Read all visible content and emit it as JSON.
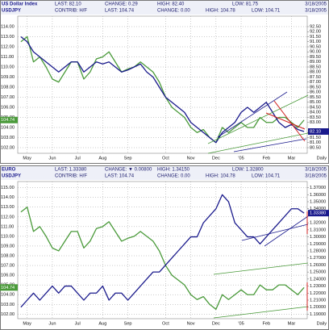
{
  "chart_data": [
    {
      "type": "line",
      "header": {
        "row1": [
          "US Dollar Index",
          "LAST: 82.10",
          "CHANGE: 0.29",
          "HIGH: 82.40",
          "LOW: 81.75"
        ],
        "date1": "3/18/2005",
        "row2": [
          "USDJPY",
          "CONTRIB: H/F",
          "LAST: 104.74",
          "CHANGE: 0.00",
          "HIGH: 104.78",
          "LOW: 104.71"
        ],
        "date2": "3/18/2005"
      },
      "badge_left": "104.74",
      "badge_right": "82.10",
      "periodicity": "Daily",
      "categories": [
        null,
        "May",
        null,
        null,
        null,
        "Jun",
        null,
        null,
        null,
        "Jul",
        null,
        null,
        null,
        "Aug",
        null,
        null,
        null,
        "Sep",
        null,
        null,
        null,
        null,
        null,
        "Oct",
        null,
        null,
        null,
        "Nov",
        null,
        null,
        null,
        "Dec",
        null,
        null,
        null,
        "'05",
        null,
        null,
        null,
        "Feb",
        null,
        null,
        null,
        "Mar",
        null,
        null
      ],
      "ylim": [
        101.44,
        115.04
      ],
      "y2lim": [
        79.94,
        93.54
      ],
      "yticks": [
        {
          "value": 114,
          "label": "114.00"
        },
        {
          "value": 113,
          "label": "113.00"
        },
        {
          "value": 112,
          "label": "112.00"
        },
        {
          "value": 111,
          "label": "111.00"
        },
        {
          "value": 110,
          "label": "110.00"
        },
        {
          "value": 109,
          "label": "109.00"
        },
        {
          "value": 108,
          "label": "108.00"
        },
        {
          "value": 107,
          "label": "107.00"
        },
        {
          "value": 106,
          "label": "106.00"
        },
        {
          "value": 105,
          "label": "105.00"
        },
        {
          "value": 104,
          "label": "104.00"
        },
        {
          "value": 103,
          "label": "103.00"
        },
        {
          "value": 102,
          "label": "102.00"
        }
      ],
      "y2ticks": [
        {
          "value": 92.5,
          "label": "92.50"
        },
        {
          "value": 92,
          "label": "92.00"
        },
        {
          "value": 91.5,
          "label": "91.50"
        },
        {
          "value": 91,
          "label": "91.00"
        },
        {
          "value": 90.5,
          "label": "90.50"
        },
        {
          "value": 90,
          "label": "90.00"
        },
        {
          "value": 89.5,
          "label": "89.50"
        },
        {
          "value": 89,
          "label": "89.00"
        },
        {
          "value": 88.5,
          "label": "88.50"
        },
        {
          "value": 88,
          "label": "88.00"
        },
        {
          "value": 87.5,
          "label": "87.50"
        },
        {
          "value": 87,
          "label": "87.00"
        },
        {
          "value": 86.5,
          "label": "86.50"
        },
        {
          "value": 86,
          "label": "86.00"
        },
        {
          "value": 85.5,
          "label": "85.50"
        },
        {
          "value": 85,
          "label": "85.00"
        },
        {
          "value": 84.5,
          "label": "84.50"
        },
        {
          "value": 84,
          "label": "84.00"
        },
        {
          "value": 83.5,
          "label": "83.50"
        },
        {
          "value": 83,
          "label": "83.00"
        },
        {
          "value": 82,
          "label": "82.00"
        },
        {
          "value": 81.5,
          "label": "81.50"
        },
        {
          "value": 81,
          "label": "81.00"
        },
        {
          "value": 80.5,
          "label": "80.50"
        }
      ],
      "grid": true,
      "series": [
        {
          "color": "#4a9a3a",
          "axis": "y",
          "values": [
            112.5,
            113,
            110.5,
            111,
            110,
            108.8,
            108.5,
            109.5,
            110.5,
            110.5,
            108.8,
            109.5,
            110.8,
            111,
            111.5,
            110.5,
            109.5,
            109.8,
            110,
            110.5,
            110,
            109.5,
            108.5,
            107,
            106,
            105.5,
            105,
            104,
            103.5,
            103.8,
            103,
            102.5,
            104,
            103.5,
            104,
            104.5,
            104,
            104,
            105,
            104.5,
            104.5,
            105,
            105,
            104.5,
            104,
            104.74
          ]
        },
        {
          "color": "#1a1a8c",
          "axis": "y2",
          "values": [
            91.5,
            91,
            90,
            89.5,
            89,
            88.5,
            88,
            88.5,
            89,
            89,
            88,
            88.5,
            89,
            88.8,
            89,
            88.5,
            88,
            88.2,
            88.5,
            88.8,
            88,
            87.5,
            86.5,
            85.5,
            85,
            84.5,
            84,
            83,
            82.5,
            82,
            81.5,
            81,
            82,
            82.5,
            83,
            84,
            84.5,
            84,
            84.5,
            85,
            84,
            83,
            82.5,
            82.8,
            82.3,
            82.1
          ]
        }
      ]
    },
    {
      "type": "line",
      "header": {
        "row1": [
          "EURO",
          "LAST: 1.33380",
          "CHANGE: ▼ 0.00800",
          "HIGH: 1.34150",
          "LOW: 1.32800"
        ],
        "date1": "3/18/2005",
        "row2": [
          "USDJPY",
          "CONTRIB: H/F",
          "LAST: 104.74",
          "CHANGE: 0.00",
          "HIGH: 104.78",
          "LOW: 104.71"
        ],
        "date2": "3/18/2005"
      },
      "badge_left": "104.74",
      "badge_right": "1.33380",
      "periodicity": "Daily",
      "categories": [
        null,
        "May",
        null,
        null,
        null,
        "Jun",
        null,
        null,
        null,
        "Jul",
        null,
        null,
        null,
        "Aug",
        null,
        null,
        null,
        "Sep",
        null,
        null,
        null,
        null,
        null,
        "Oct",
        null,
        null,
        null,
        "Nov",
        null,
        null,
        null,
        "Dec",
        null,
        null,
        null,
        "'05",
        null,
        null,
        null,
        "Feb",
        null,
        null,
        null,
        "Mar",
        null,
        null
      ],
      "ylim": [
        101.53,
        115.63
      ],
      "y2lim": [
        1.1836,
        1.3787
      ],
      "yticks": [
        {
          "value": 115,
          "label": "115.00"
        },
        {
          "value": 114,
          "label": "114.00"
        },
        {
          "value": 113,
          "label": "113.00"
        },
        {
          "value": 112,
          "label": "112.00"
        },
        {
          "value": 111,
          "label": "111.00"
        },
        {
          "value": 110,
          "label": "110.00"
        },
        {
          "value": 109,
          "label": "109.00"
        },
        {
          "value": 108,
          "label": "108.00"
        },
        {
          "value": 107,
          "label": "107.00"
        },
        {
          "value": 106,
          "label": "106.00"
        },
        {
          "value": 105,
          "label": "105.00"
        },
        {
          "value": 104,
          "label": "104.00"
        },
        {
          "value": 103,
          "label": "103.00"
        },
        {
          "value": 102,
          "label": "102.00"
        }
      ],
      "y2ticks": [
        {
          "value": 1.37,
          "label": "1.37000"
        },
        {
          "value": 1.36,
          "label": "1.36000"
        },
        {
          "value": 1.35,
          "label": "1.35000"
        },
        {
          "value": 1.34,
          "label": "1.34000"
        },
        {
          "value": 1.32,
          "label": "1.32000"
        },
        {
          "value": 1.31,
          "label": "1.31000"
        },
        {
          "value": 1.3,
          "label": "1.30000"
        },
        {
          "value": 1.29,
          "label": "1.29000"
        },
        {
          "value": 1.28,
          "label": "1.28000"
        },
        {
          "value": 1.27,
          "label": "1.27000"
        },
        {
          "value": 1.26,
          "label": "1.26000"
        },
        {
          "value": 1.25,
          "label": "1.25000"
        },
        {
          "value": 1.24,
          "label": "1.24000"
        },
        {
          "value": 1.23,
          "label": "1.23000"
        },
        {
          "value": 1.22,
          "label": "1.22000"
        },
        {
          "value": 1.21,
          "label": "1.21000"
        },
        {
          "value": 1.2,
          "label": "1.20000"
        },
        {
          "value": 1.19,
          "label": "1.19000"
        }
      ],
      "grid": true,
      "series": [
        {
          "color": "#4a9a3a",
          "axis": "y",
          "values": [
            112.5,
            113,
            110.5,
            111,
            110,
            108.8,
            108.5,
            109.5,
            110.5,
            110.5,
            108.8,
            109.5,
            110.8,
            111,
            111.5,
            110.5,
            109.5,
            109.8,
            110,
            110.5,
            110,
            109.5,
            108.5,
            107,
            106,
            105.5,
            105,
            104,
            103.5,
            103.8,
            103,
            102.5,
            104,
            103.5,
            104,
            104.5,
            104,
            104,
            105,
            104.5,
            104.5,
            105,
            105,
            104.5,
            104,
            104.74
          ]
        },
        {
          "color": "#1a1a8c",
          "axis": "y2",
          "values": [
            1.2,
            1.21,
            1.22,
            1.21,
            1.22,
            1.23,
            1.22,
            1.23,
            1.23,
            1.22,
            1.21,
            1.22,
            1.22,
            1.23,
            1.21,
            1.22,
            1.22,
            1.21,
            1.22,
            1.23,
            1.24,
            1.25,
            1.25,
            1.26,
            1.27,
            1.28,
            1.29,
            1.3,
            1.3,
            1.32,
            1.33,
            1.34,
            1.36,
            1.35,
            1.32,
            1.31,
            1.3,
            1.3,
            1.29,
            1.3,
            1.31,
            1.32,
            1.33,
            1.34,
            1.34,
            1.3338
          ]
        }
      ]
    }
  ]
}
